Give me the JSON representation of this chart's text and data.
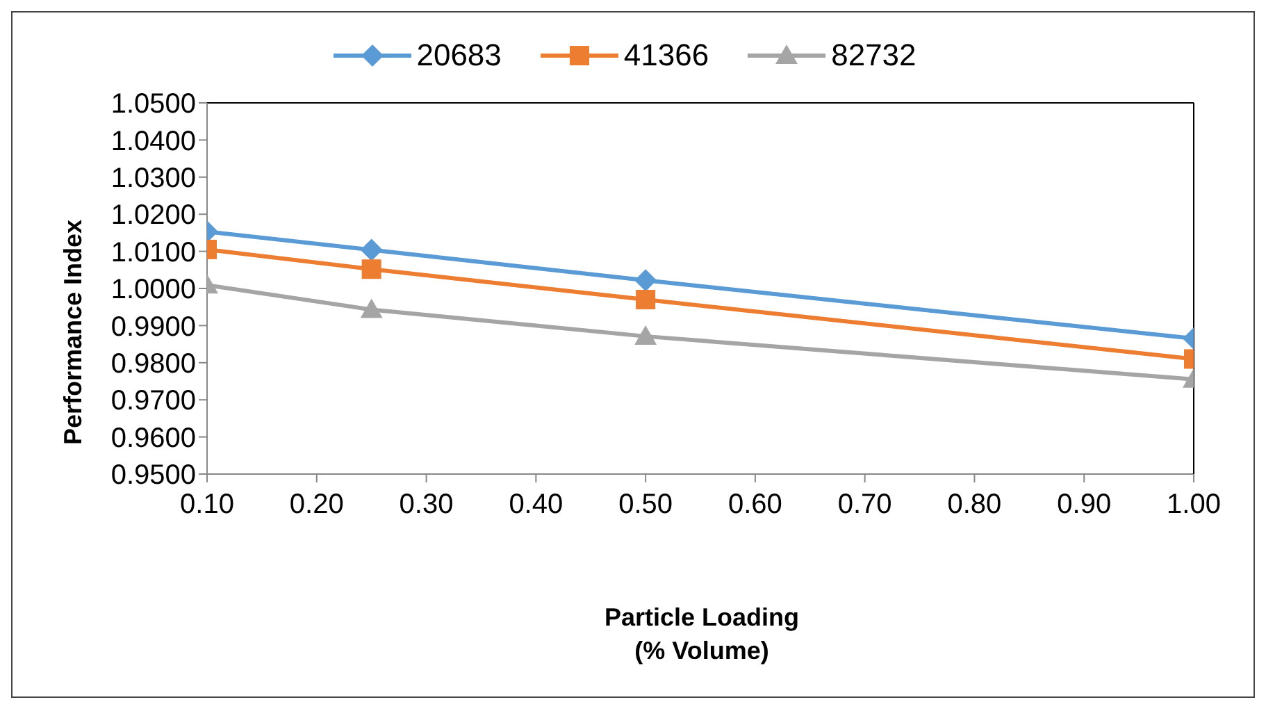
{
  "chart_data": {
    "type": "line",
    "xlabel": "Particle Loading\n(% Volume)",
    "ylabel": "Performance Index",
    "x": [
      0.1,
      0.25,
      0.5,
      1.0
    ],
    "series": [
      {
        "name": "20683",
        "color": "#5b9bd5",
        "marker": "diamond",
        "values": [
          1.0153,
          1.0104,
          1.0022,
          0.9865
        ]
      },
      {
        "name": "41366",
        "color": "#ed7d31",
        "marker": "square",
        "values": [
          1.0105,
          1.0052,
          0.997,
          0.981
        ]
      },
      {
        "name": "82732",
        "color": "#a5a5a5",
        "marker": "triangle",
        "values": [
          1.0009,
          0.9943,
          0.9871,
          0.9755
        ]
      }
    ],
    "xlim": [
      0.1,
      1.0
    ],
    "xticks": [
      {
        "value": 0.1,
        "label": "0.10"
      },
      {
        "value": 0.2,
        "label": "0.20"
      },
      {
        "value": 0.3,
        "label": "0.30"
      },
      {
        "value": 0.4,
        "label": "0.40"
      },
      {
        "value": 0.5,
        "label": "0.50"
      },
      {
        "value": 0.6,
        "label": "0.60"
      },
      {
        "value": 0.7,
        "label": "0.70"
      },
      {
        "value": 0.8,
        "label": "0.80"
      },
      {
        "value": 0.9,
        "label": "0.90"
      },
      {
        "value": 1.0,
        "label": "1.00"
      }
    ],
    "ylim": [
      0.95,
      1.05
    ],
    "yticks": [
      {
        "value": 0.95,
        "label": "0.9500"
      },
      {
        "value": 0.96,
        "label": "0.9600"
      },
      {
        "value": 0.97,
        "label": "0.9700"
      },
      {
        "value": 0.98,
        "label": "0.9800"
      },
      {
        "value": 0.99,
        "label": "0.9900"
      },
      {
        "value": 1.0,
        "label": "1.0000"
      },
      {
        "value": 1.01,
        "label": "1.0100"
      },
      {
        "value": 1.02,
        "label": "1.0200"
      },
      {
        "value": 1.03,
        "label": "1.0300"
      },
      {
        "value": 1.04,
        "label": "1.0400"
      },
      {
        "value": 1.05,
        "label": "1.0500"
      }
    ],
    "grid": false,
    "legend": "top",
    "line_style": "solid"
  }
}
